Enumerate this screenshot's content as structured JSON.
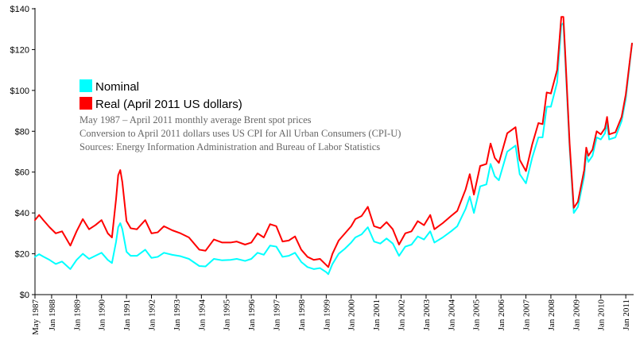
{
  "chart_data": {
    "type": "line",
    "title": "",
    "xlabel": "",
    "ylabel": "",
    "ylim": [
      0,
      140
    ],
    "y_ticks": [
      "$0",
      "$20",
      "$40",
      "$60",
      "$80",
      "$100",
      "$120",
      "$140"
    ],
    "x_ticks": [
      "May 1987",
      "Jan 1988",
      "Jan 1989",
      "Jan 1990",
      "Jan 1991",
      "Jan 1992",
      "Jan 1993",
      "Jan 1994",
      "Jan 1995",
      "Jan 1996",
      "Jan 1997",
      "Jan 1998",
      "Jan 1999",
      "Jan 2000",
      "Jan 2001",
      "Jan 2002",
      "Jan 2003",
      "Jan 2004",
      "Jan 2005",
      "Jan 2006",
      "Jan 2007",
      "Jan 2008",
      "Jan 2009",
      "Jan 2010",
      "Jan 2011"
    ],
    "grid": false,
    "legend_position": "upper-left",
    "annotations": [
      "May 1987 – April 2011 monthly average Brent spot prices",
      "Conversion to April 2011 dollars uses US CPI for All Urban Consumers (CPI-U)",
      "Sources: Energy Information Administration and Bureau of Labor Statistics"
    ],
    "x_start": "1987-05",
    "x_end": "2011-04",
    "series": [
      {
        "name": "Nominal",
        "color": "#00ffff",
        "points": [
          [
            "1987-05",
            18.5
          ],
          [
            "1987-07",
            19.8
          ],
          [
            "1987-09",
            18.6
          ],
          [
            "1987-12",
            17.0
          ],
          [
            "1988-03",
            15.0
          ],
          [
            "1988-06",
            16.2
          ],
          [
            "1988-10",
            12.5
          ],
          [
            "1989-01",
            17.0
          ],
          [
            "1989-04",
            20.0
          ],
          [
            "1989-07",
            17.5
          ],
          [
            "1989-10",
            19.0
          ],
          [
            "1990-01",
            20.5
          ],
          [
            "1990-04",
            17.0
          ],
          [
            "1990-06",
            15.5
          ],
          [
            "1990-08",
            26.0
          ],
          [
            "1990-09",
            33.0
          ],
          [
            "1990-10",
            35.0
          ],
          [
            "1990-11",
            32.0
          ],
          [
            "1991-01",
            21.0
          ],
          [
            "1991-03",
            19.0
          ],
          [
            "1991-06",
            19.0
          ],
          [
            "1991-10",
            22.0
          ],
          [
            "1992-01",
            18.0
          ],
          [
            "1992-04",
            18.5
          ],
          [
            "1992-07",
            20.5
          ],
          [
            "1992-11",
            19.5
          ],
          [
            "1993-03",
            18.8
          ],
          [
            "1993-07",
            17.5
          ],
          [
            "1993-12",
            14.0
          ],
          [
            "1994-03",
            13.8
          ],
          [
            "1994-07",
            17.5
          ],
          [
            "1994-11",
            16.8
          ],
          [
            "1995-03",
            17.0
          ],
          [
            "1995-06",
            17.5
          ],
          [
            "1995-10",
            16.5
          ],
          [
            "1996-01",
            17.5
          ],
          [
            "1996-04",
            20.5
          ],
          [
            "1996-07",
            19.5
          ],
          [
            "1996-10",
            24.0
          ],
          [
            "1997-01",
            23.5
          ],
          [
            "1997-04",
            18.5
          ],
          [
            "1997-07",
            19.0
          ],
          [
            "1997-10",
            20.5
          ],
          [
            "1998-01",
            16.0
          ],
          [
            "1998-04",
            13.5
          ],
          [
            "1998-07",
            12.5
          ],
          [
            "1998-10",
            13.0
          ],
          [
            "1999-01",
            11.0
          ],
          [
            "1999-02",
            10.0
          ],
          [
            "1999-04",
            15.0
          ],
          [
            "1999-07",
            20.0
          ],
          [
            "1999-10",
            22.5
          ],
          [
            "2000-01",
            25.5
          ],
          [
            "2000-03",
            28.0
          ],
          [
            "2000-06",
            29.5
          ],
          [
            "2000-09",
            33.0
          ],
          [
            "2000-12",
            26.0
          ],
          [
            "2001-03",
            25.0
          ],
          [
            "2001-06",
            27.5
          ],
          [
            "2001-09",
            25.0
          ],
          [
            "2001-12",
            19.0
          ],
          [
            "2002-03",
            23.5
          ],
          [
            "2002-06",
            24.5
          ],
          [
            "2002-09",
            28.5
          ],
          [
            "2002-12",
            27.0
          ],
          [
            "2003-03",
            31.0
          ],
          [
            "2003-05",
            25.5
          ],
          [
            "2003-09",
            28.0
          ],
          [
            "2004-01",
            31.0
          ],
          [
            "2004-04",
            33.5
          ],
          [
            "2004-08",
            42.0
          ],
          [
            "2004-10",
            48.0
          ],
          [
            "2004-12",
            40.0
          ],
          [
            "2005-03",
            53.0
          ],
          [
            "2005-06",
            54.0
          ],
          [
            "2005-08",
            64.0
          ],
          [
            "2005-10",
            58.0
          ],
          [
            "2005-12",
            56.0
          ],
          [
            "2006-04",
            70.0
          ],
          [
            "2006-08",
            73.0
          ],
          [
            "2006-10",
            59.0
          ],
          [
            "2007-01",
            54.5
          ],
          [
            "2007-04",
            67.0
          ],
          [
            "2007-07",
            77.0
          ],
          [
            "2007-09",
            77.0
          ],
          [
            "2007-11",
            92.0
          ],
          [
            "2008-01",
            92.0
          ],
          [
            "2008-04",
            104.0
          ],
          [
            "2008-06",
            132.0
          ],
          [
            "2008-07",
            133.0
          ],
          [
            "2008-08",
            113.0
          ],
          [
            "2008-10",
            72.0
          ],
          [
            "2008-12",
            40.0
          ],
          [
            "2009-02",
            43.0
          ],
          [
            "2009-05",
            58.0
          ],
          [
            "2009-06",
            69.0
          ],
          [
            "2009-07",
            65.0
          ],
          [
            "2009-09",
            68.0
          ],
          [
            "2009-11",
            77.0
          ],
          [
            "2010-01",
            76.0
          ],
          [
            "2010-03",
            79.0
          ],
          [
            "2010-04",
            84.0
          ],
          [
            "2010-05",
            76.0
          ],
          [
            "2010-08",
            77.0
          ],
          [
            "2010-11",
            85.0
          ],
          [
            "2011-01",
            96.0
          ],
          [
            "2011-03",
            114.0
          ],
          [
            "2011-04",
            123.0
          ]
        ]
      },
      {
        "name": "Real (April 2011 US dollars)",
        "color": "#ff0000",
        "points": [
          [
            "1987-05",
            36.5
          ],
          [
            "1987-07",
            39.0
          ],
          [
            "1987-09",
            36.5
          ],
          [
            "1987-12",
            33.0
          ],
          [
            "1988-03",
            30.0
          ],
          [
            "1988-06",
            31.0
          ],
          [
            "1988-10",
            24.0
          ],
          [
            "1989-01",
            31.0
          ],
          [
            "1989-04",
            37.0
          ],
          [
            "1989-07",
            32.0
          ],
          [
            "1989-10",
            34.0
          ],
          [
            "1990-01",
            36.5
          ],
          [
            "1990-04",
            30.0
          ],
          [
            "1990-06",
            28.0
          ],
          [
            "1990-08",
            47.0
          ],
          [
            "1990-09",
            58.5
          ],
          [
            "1990-10",
            61.0
          ],
          [
            "1990-11",
            55.0
          ],
          [
            "1991-01",
            36.0
          ],
          [
            "1991-03",
            32.5
          ],
          [
            "1991-06",
            32.0
          ],
          [
            "1991-10",
            36.5
          ],
          [
            "1992-01",
            30.0
          ],
          [
            "1992-04",
            30.5
          ],
          [
            "1992-07",
            33.5
          ],
          [
            "1992-11",
            31.5
          ],
          [
            "1993-03",
            30.0
          ],
          [
            "1993-07",
            28.0
          ],
          [
            "1993-12",
            22.0
          ],
          [
            "1994-03",
            21.5
          ],
          [
            "1994-07",
            27.0
          ],
          [
            "1994-11",
            25.5
          ],
          [
            "1995-03",
            25.5
          ],
          [
            "1995-06",
            26.0
          ],
          [
            "1995-10",
            24.5
          ],
          [
            "1996-01",
            25.5
          ],
          [
            "1996-04",
            30.0
          ],
          [
            "1996-07",
            28.0
          ],
          [
            "1996-10",
            34.5
          ],
          [
            "1997-01",
            33.5
          ],
          [
            "1997-04",
            26.0
          ],
          [
            "1997-07",
            26.5
          ],
          [
            "1997-10",
            28.5
          ],
          [
            "1998-01",
            22.0
          ],
          [
            "1998-04",
            18.5
          ],
          [
            "1998-07",
            17.0
          ],
          [
            "1998-10",
            17.5
          ],
          [
            "1999-01",
            14.5
          ],
          [
            "1999-02",
            13.5
          ],
          [
            "1999-04",
            20.0
          ],
          [
            "1999-07",
            26.5
          ],
          [
            "1999-10",
            30.0
          ],
          [
            "2000-01",
            33.5
          ],
          [
            "2000-03",
            37.0
          ],
          [
            "2000-06",
            38.5
          ],
          [
            "2000-09",
            43.0
          ],
          [
            "2000-12",
            33.5
          ],
          [
            "2001-03",
            32.5
          ],
          [
            "2001-06",
            35.5
          ],
          [
            "2001-09",
            32.0
          ],
          [
            "2001-12",
            24.5
          ],
          [
            "2002-03",
            30.0
          ],
          [
            "2002-06",
            31.0
          ],
          [
            "2002-09",
            36.0
          ],
          [
            "2002-12",
            34.0
          ],
          [
            "2003-03",
            39.0
          ],
          [
            "2003-05",
            32.0
          ],
          [
            "2003-09",
            35.0
          ],
          [
            "2004-01",
            38.5
          ],
          [
            "2004-04",
            41.0
          ],
          [
            "2004-08",
            51.5
          ],
          [
            "2004-10",
            59.0
          ],
          [
            "2004-12",
            49.0
          ],
          [
            "2005-03",
            63.0
          ],
          [
            "2005-06",
            64.0
          ],
          [
            "2005-08",
            74.0
          ],
          [
            "2005-10",
            67.0
          ],
          [
            "2005-12",
            64.5
          ],
          [
            "2006-04",
            79.0
          ],
          [
            "2006-08",
            82.0
          ],
          [
            "2006-10",
            66.0
          ],
          [
            "2007-01",
            60.5
          ],
          [
            "2007-04",
            73.5
          ],
          [
            "2007-07",
            84.0
          ],
          [
            "2007-09",
            83.5
          ],
          [
            "2007-11",
            99.0
          ],
          [
            "2008-01",
            98.5
          ],
          [
            "2008-04",
            110.0
          ],
          [
            "2008-06",
            136.0
          ],
          [
            "2008-07",
            136.0
          ],
          [
            "2008-08",
            116.0
          ],
          [
            "2008-10",
            74.0
          ],
          [
            "2008-12",
            42.5
          ],
          [
            "2009-02",
            45.5
          ],
          [
            "2009-05",
            61.0
          ],
          [
            "2009-06",
            72.0
          ],
          [
            "2009-07",
            68.0
          ],
          [
            "2009-09",
            71.0
          ],
          [
            "2009-11",
            80.0
          ],
          [
            "2010-01",
            78.5
          ],
          [
            "2010-03",
            81.5
          ],
          [
            "2010-04",
            87.0
          ],
          [
            "2010-05",
            78.5
          ],
          [
            "2010-08",
            79.5
          ],
          [
            "2010-11",
            87.0
          ],
          [
            "2011-01",
            98.0
          ],
          [
            "2011-03",
            115.0
          ],
          [
            "2011-04",
            123.0
          ]
        ]
      }
    ]
  }
}
